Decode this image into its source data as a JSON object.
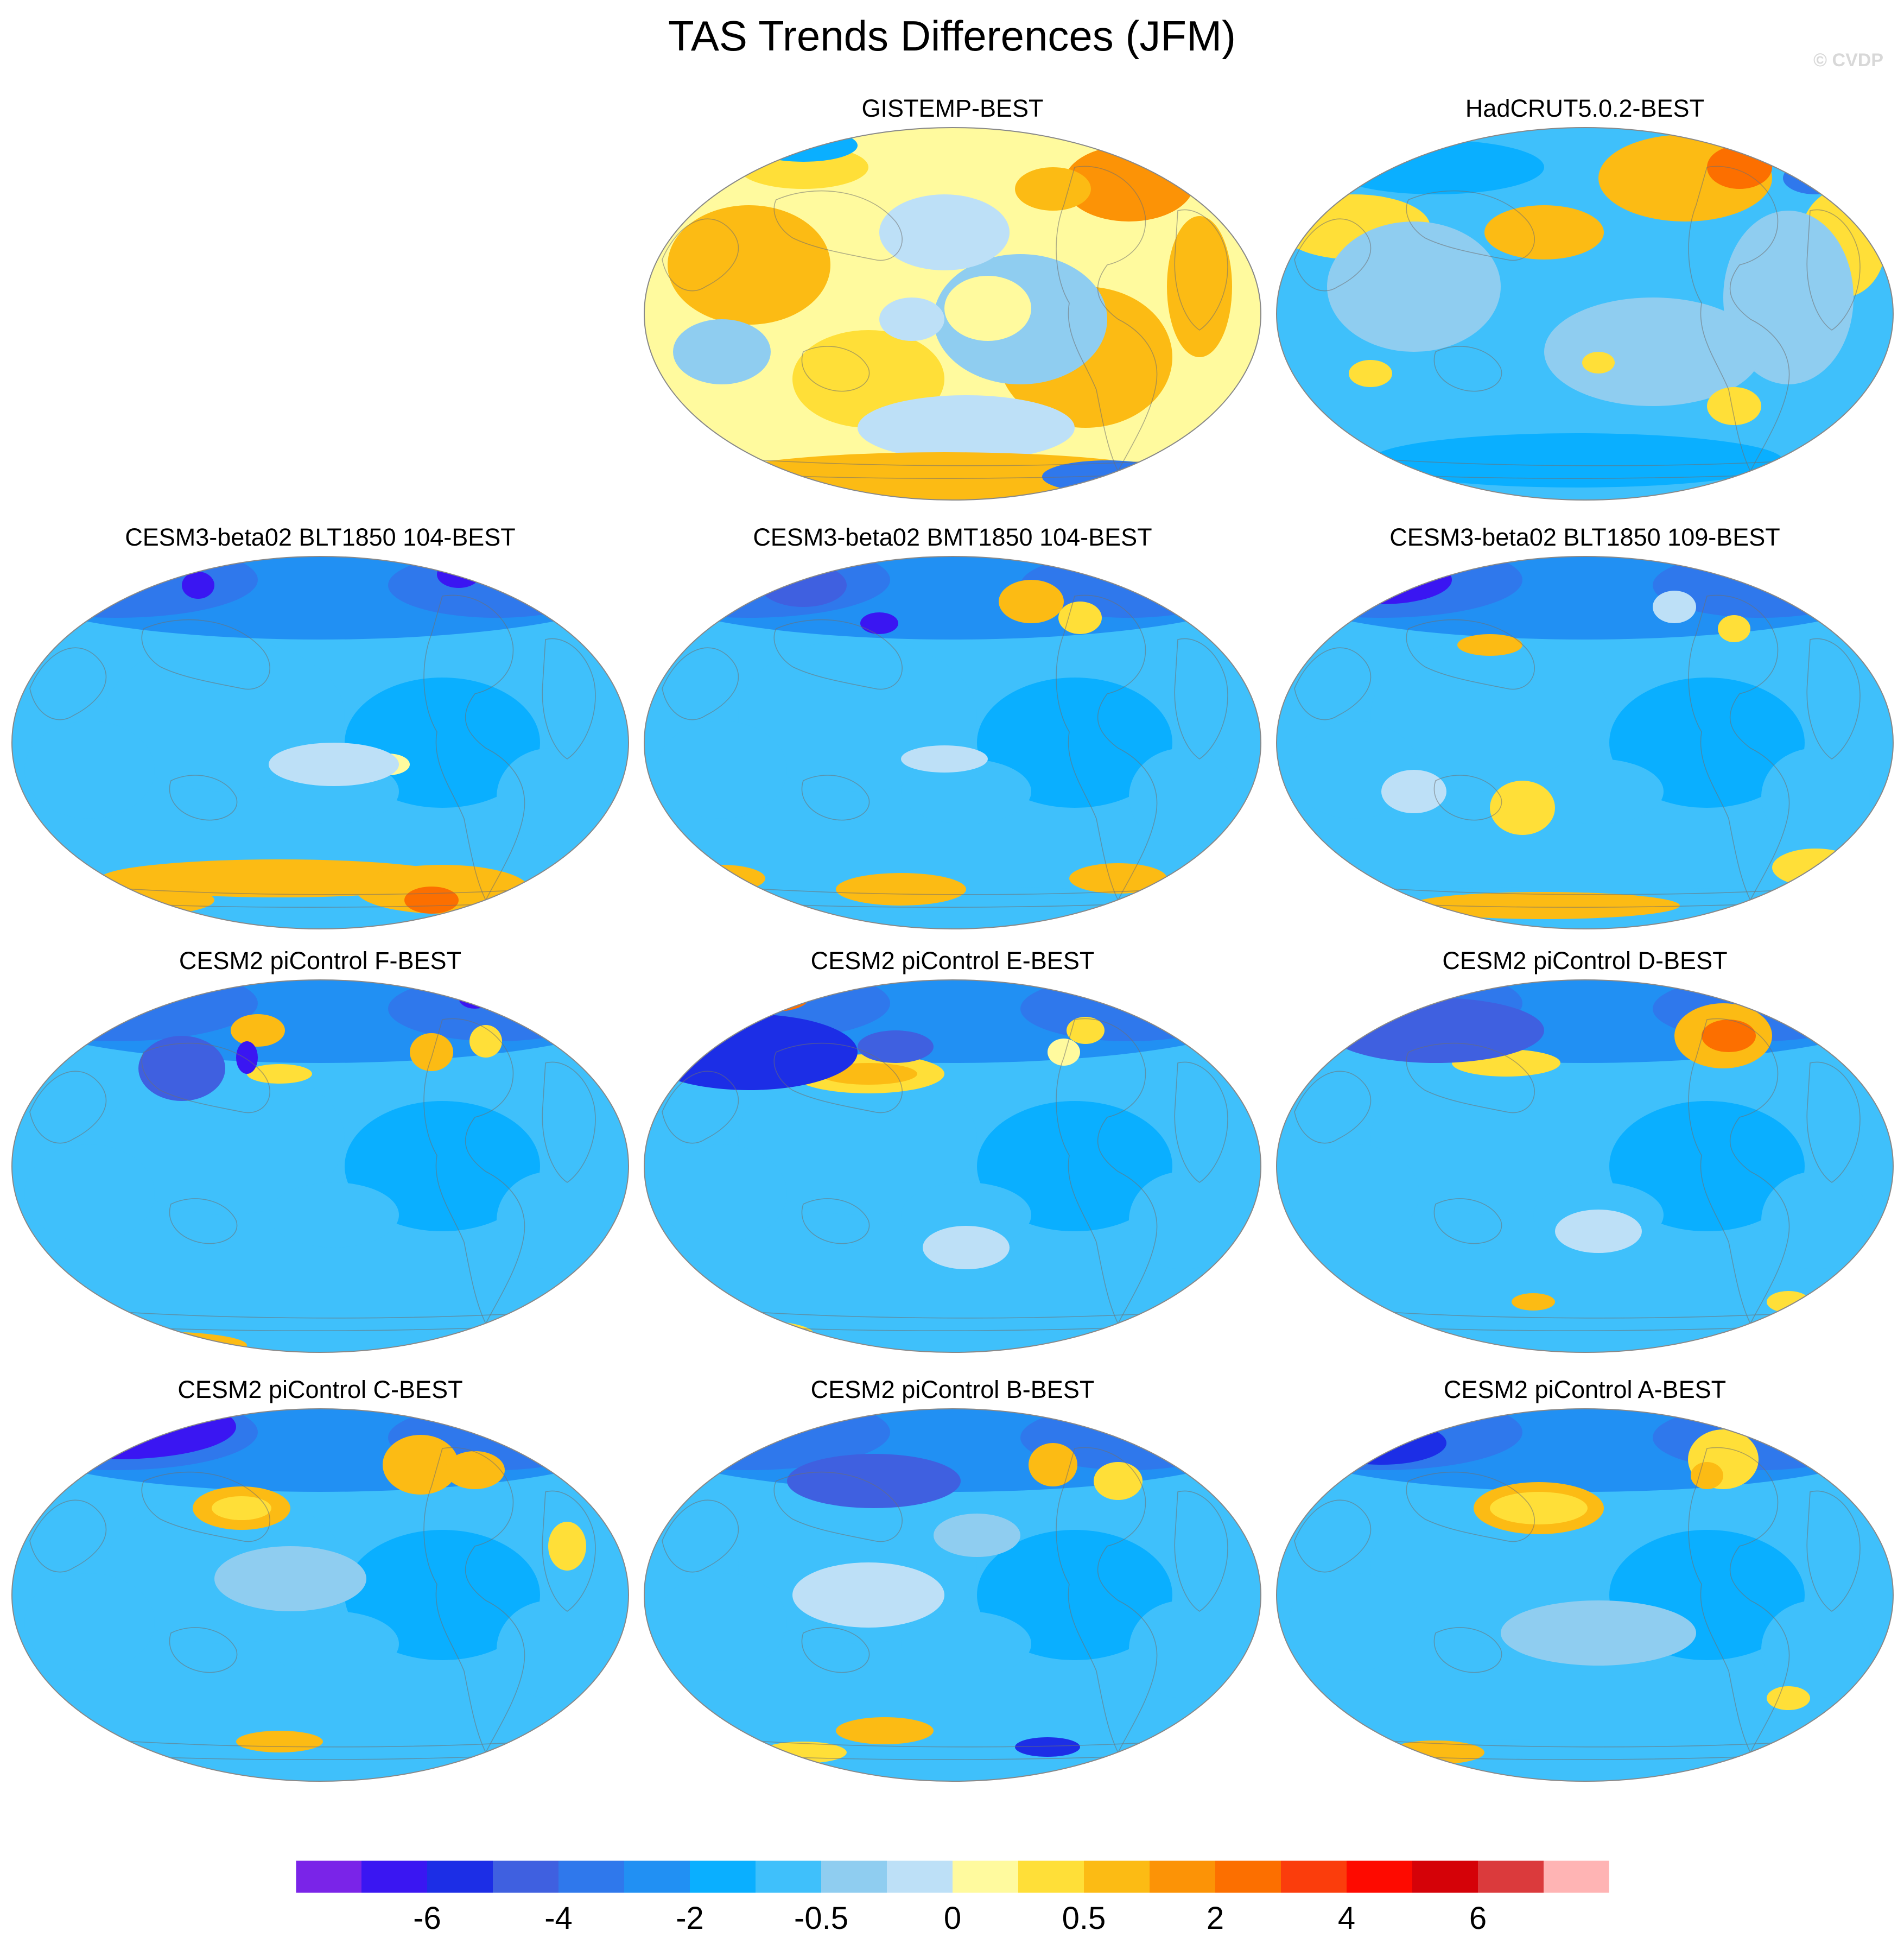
{
  "title": "TAS Trends Differences (JFM)",
  "watermark": "© CVDP",
  "palette": [
    "#7a24e8",
    "#3a16f2",
    "#1c2ee6",
    "#3f60e0",
    "#2f78ec",
    "#2190f3",
    "#0aafff",
    "#3fc0fb",
    "#8fcdf0",
    "#bde0f7",
    "#fffa9e",
    "#ffdf38",
    "#fcbb14",
    "#fc9306",
    "#fc6f00",
    "#fb3d0c",
    "#fe0a00",
    "#d50208",
    "#db3a3c",
    "#ffb4b4"
  ],
  "colorbar": {
    "labels": [
      "-6",
      "-4",
      "-2",
      "-0.5",
      "0",
      "0.5",
      "2",
      "4",
      "6"
    ]
  },
  "panels": [
    {
      "id": "gistemp",
      "title": "GISTEMP-BEST",
      "base": "#fffa9e",
      "scheme": "warm"
    },
    {
      "id": "hadcrut",
      "title": "HadCRUT5.0.2-BEST",
      "base": "#3fc0fb",
      "scheme": "had"
    },
    {
      "id": "blt104",
      "title": "CESM3-beta02 BLT1850 104-BEST",
      "base": "#3fc0fb",
      "scheme": "cold"
    },
    {
      "id": "bmt104",
      "title": "CESM3-beta02 BMT1850 104-BEST",
      "base": "#3fc0fb",
      "scheme": "cold"
    },
    {
      "id": "blt109",
      "title": "CESM3-beta02 BLT1850 109-BEST",
      "base": "#3fc0fb",
      "scheme": "cold"
    },
    {
      "id": "picF",
      "title": "CESM2 piControl F-BEST",
      "base": "#3fc0fb",
      "scheme": "cold"
    },
    {
      "id": "picE",
      "title": "CESM2 piControl E-BEST",
      "base": "#3fc0fb",
      "scheme": "cold"
    },
    {
      "id": "picD",
      "title": "CESM2 piControl D-BEST",
      "base": "#3fc0fb",
      "scheme": "cold"
    },
    {
      "id": "picC",
      "title": "CESM2 piControl C-BEST",
      "base": "#3fc0fb",
      "scheme": "cold"
    },
    {
      "id": "picB",
      "title": "CESM2 piControl B-BEST",
      "base": "#3fc0fb",
      "scheme": "cold"
    },
    {
      "id": "picA",
      "title": "CESM2 piControl A-BEST",
      "base": "#3fc0fb",
      "scheme": "cold"
    }
  ]
}
